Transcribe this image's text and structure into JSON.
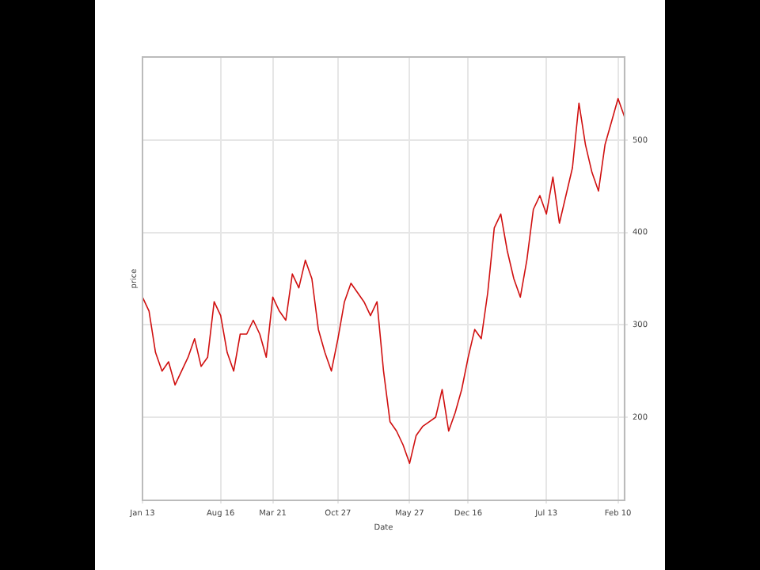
{
  "chart_data": {
    "type": "line",
    "xlabel": "Date",
    "ylabel": "price",
    "categories": [
      "Jan 13",
      null,
      null,
      null,
      null,
      null,
      null,
      null,
      null,
      null,
      null,
      null,
      "Aug 16",
      null,
      null,
      null,
      null,
      null,
      null,
      null,
      "Mar 21",
      null,
      null,
      null,
      null,
      null,
      null,
      null,
      null,
      null,
      "Oct 27",
      null,
      null,
      null,
      null,
      null,
      null,
      null,
      null,
      null,
      null,
      "May 27",
      null,
      null,
      null,
      null,
      null,
      null,
      null,
      null,
      "Dec 16",
      null,
      null,
      null,
      null,
      null,
      null,
      null,
      null,
      null,
      null,
      null,
      "Jul 13",
      null,
      null,
      null,
      null,
      null,
      null,
      null,
      null,
      null,
      null,
      "Feb 10",
      null
    ],
    "series": [
      {
        "color": "#d01010",
        "values": [
          330,
          315,
          270,
          250,
          260,
          235,
          250,
          265,
          285,
          255,
          265,
          325,
          310,
          270,
          250,
          290,
          290,
          305,
          290,
          265,
          330,
          315,
          305,
          355,
          340,
          370,
          350,
          295,
          270,
          250,
          285,
          325,
          345,
          335,
          325,
          310,
          325,
          250,
          195,
          185,
          170,
          150,
          180,
          190,
          195,
          200,
          230,
          185,
          205,
          230,
          265,
          295,
          285,
          335,
          405,
          420,
          380,
          350,
          330,
          370,
          425,
          440,
          420,
          460,
          410,
          440,
          470,
          540,
          495,
          465,
          445,
          495,
          520,
          545,
          525
        ]
      }
    ],
    "ylim": [
      110,
      590
    ],
    "yticks": [
      200,
      300,
      400,
      500
    ],
    "grid": true,
    "legend": false,
    "marker": "none",
    "line_style": "solid"
  }
}
